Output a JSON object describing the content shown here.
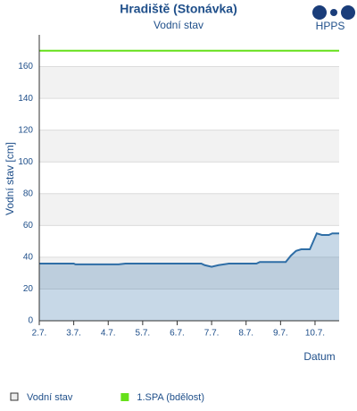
{
  "chart_data": {
    "type": "line",
    "title": "Hradiště (Stonávka)",
    "subtitle": "Vodní stav",
    "logo": "HPPS",
    "y_label": "Vodní stav [cm]",
    "x_label": "Datum",
    "x": [
      2,
      3,
      3.05,
      4.2,
      4.3,
      4.5,
      6.7,
      6.8,
      7.0,
      7.2,
      7.5,
      8.3,
      8.4,
      9.15,
      9.3,
      9.45,
      9.6,
      9.85,
      9.95,
      10.05,
      10.2,
      10.4,
      10.5,
      10.7
    ],
    "series": [
      {
        "name": "Vodní stav",
        "color": "#2f6ea6",
        "values": [
          36,
          36,
          35.5,
          35.5,
          35.5,
          36,
          36,
          35,
          34,
          35,
          36,
          36,
          37,
          37,
          41,
          44,
          45,
          45,
          50,
          55,
          54,
          54,
          55,
          55
        ]
      }
    ],
    "thresholds": [
      {
        "name": "1.SPA (bdělost)",
        "value": 170,
        "color": "#66e01a"
      }
    ],
    "xlim": [
      2,
      10.7
    ],
    "xticks": [
      {
        "value": 2,
        "label": "2.7."
      },
      {
        "value": 3,
        "label": "3.7."
      },
      {
        "value": 4,
        "label": "4.7."
      },
      {
        "value": 5,
        "label": "5.7."
      },
      {
        "value": 6,
        "label": "6.7."
      },
      {
        "value": 7,
        "label": "7.7."
      },
      {
        "value": 8,
        "label": "8.7."
      },
      {
        "value": 9,
        "label": "9.7."
      },
      {
        "value": 10,
        "label": "10.7."
      }
    ],
    "ylim": [
      0,
      180
    ],
    "yticks": [
      0,
      20,
      40,
      60,
      80,
      100,
      120,
      140,
      160
    ],
    "grid": true
  }
}
